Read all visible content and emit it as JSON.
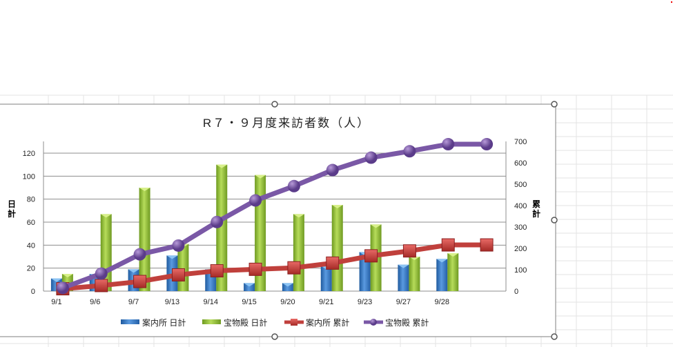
{
  "chart_data": {
    "type": "bar+line",
    "title": "R７・９月度来訪者数（人）",
    "ylabel_left": "日計",
    "ylabel_right": "累計",
    "categories": [
      "9/1",
      "9/6",
      "9/7",
      "9/13",
      "9/14",
      "9/15",
      "9/20",
      "9/21",
      "9/23",
      "9/27",
      "9/28",
      ""
    ],
    "ylim_left": [
      0,
      120
    ],
    "yticks_left": [
      0,
      20,
      40,
      60,
      80,
      100,
      120
    ],
    "ylim_right": [
      0,
      700
    ],
    "yticks_right": [
      0,
      100,
      200,
      300,
      400,
      500,
      600,
      700
    ],
    "grid": true,
    "legend": "bottom",
    "series": [
      {
        "name": "案内所 日計",
        "type": "bar",
        "axis": "left",
        "color": "#3c7cc4",
        "values": [
          11,
          15,
          19,
          31,
          19,
          7,
          7,
          22,
          34,
          23,
          28,
          null
        ]
      },
      {
        "name": "宝物殿 日計",
        "type": "bar",
        "axis": "left",
        "color": "#92c03c",
        "values": [
          15,
          67,
          90,
          41,
          110,
          101,
          67,
          75,
          58,
          30,
          33,
          null
        ]
      },
      {
        "name": "案内所 累計",
        "type": "line",
        "axis": "right",
        "color": "#c0403c",
        "values": [
          11,
          26,
          45,
          76,
          95,
          102,
          109,
          131,
          165,
          188,
          216,
          216
        ]
      },
      {
        "name": "宝物殿 累計",
        "type": "line",
        "axis": "right",
        "color": "#7a58a6",
        "values": [
          15,
          82,
          172,
          213,
          323,
          424,
          491,
          566,
          624,
          654,
          687,
          687
        ]
      }
    ]
  }
}
